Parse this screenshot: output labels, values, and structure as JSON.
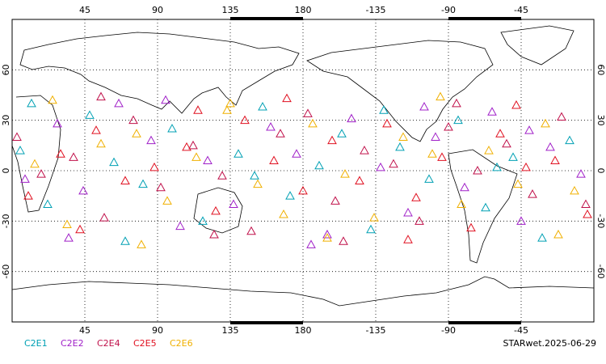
{
  "chart_data": {
    "type": "scatter",
    "xlim": [
      0,
      360
    ],
    "ylim": [
      -90,
      90
    ],
    "xticks": [
      45,
      90,
      135,
      180,
      {
        "value": 225,
        "label": "-135"
      },
      {
        "value": 270,
        "label": "-90"
      },
      {
        "value": 315,
        "label": "-45"
      }
    ],
    "yticks": [
      60,
      30,
      0,
      -30,
      -60
    ],
    "grid": true,
    "series": [
      {
        "name": "C2E1",
        "color": "#00a0b4",
        "x": [
          5,
          22,
          48,
          63,
          81,
          99,
          118,
          140,
          155,
          172,
          190,
          204,
          222,
          240,
          258,
          276,
          293,
          310,
          328,
          345,
          12,
          70,
          150,
          230,
          300
        ],
        "values": [
          12,
          -20,
          33,
          5,
          -8,
          25,
          -30,
          10,
          38,
          -15,
          3,
          22,
          -35,
          14,
          -5,
          30,
          -22,
          8,
          -40,
          18,
          40,
          -42,
          -3,
          36,
          2
        ]
      },
      {
        "name": "C2E2",
        "color": "#a020c8",
        "x": [
          8,
          28,
          44,
          66,
          86,
          104,
          121,
          137,
          160,
          176,
          195,
          210,
          228,
          245,
          262,
          280,
          297,
          315,
          333,
          352,
          35,
          95,
          185,
          255,
          320
        ],
        "values": [
          -5,
          28,
          -12,
          40,
          18,
          -33,
          6,
          -20,
          26,
          10,
          -38,
          31,
          2,
          -25,
          20,
          -10,
          35,
          -30,
          14,
          -2,
          -40,
          42,
          -44,
          38,
          24
        ]
      },
      {
        "name": "C2E4",
        "color": "#c0104a",
        "x": [
          3,
          18,
          38,
          57,
          75,
          92,
          112,
          130,
          148,
          166,
          183,
          200,
          218,
          236,
          252,
          270,
          288,
          306,
          322,
          340,
          55,
          125,
          205,
          275,
          355
        ],
        "values": [
          20,
          -2,
          8,
          -28,
          30,
          -10,
          15,
          -3,
          -36,
          22,
          34,
          -18,
          12,
          4,
          -30,
          26,
          0,
          16,
          -14,
          32,
          44,
          -38,
          -42,
          40,
          -20
        ]
      },
      {
        "name": "C2E5",
        "color": "#e01020",
        "x": [
          10,
          30,
          52,
          70,
          88,
          108,
          126,
          144,
          162,
          180,
          198,
          215,
          232,
          250,
          266,
          284,
          302,
          318,
          336,
          356,
          42,
          115,
          170,
          245,
          312
        ],
        "values": [
          -15,
          10,
          24,
          -6,
          2,
          14,
          -24,
          30,
          6,
          -12,
          18,
          -6,
          28,
          -16,
          8,
          -34,
          22,
          2,
          6,
          -26,
          -35,
          36,
          43,
          -41,
          39
        ]
      },
      {
        "name": "C2E6",
        "color": "#f0b000",
        "x": [
          14,
          34,
          55,
          77,
          96,
          114,
          133,
          152,
          168,
          186,
          206,
          224,
          242,
          260,
          278,
          295,
          313,
          330,
          348,
          25,
          80,
          135,
          195,
          265,
          338
        ],
        "values": [
          4,
          -32,
          16,
          22,
          -18,
          8,
          36,
          -8,
          -26,
          28,
          -2,
          -28,
          20,
          10,
          -20,
          12,
          -8,
          28,
          -12,
          42,
          -44,
          40,
          -40,
          44,
          -38
        ]
      }
    ],
    "footer": "STARwet.2025-06-29"
  }
}
